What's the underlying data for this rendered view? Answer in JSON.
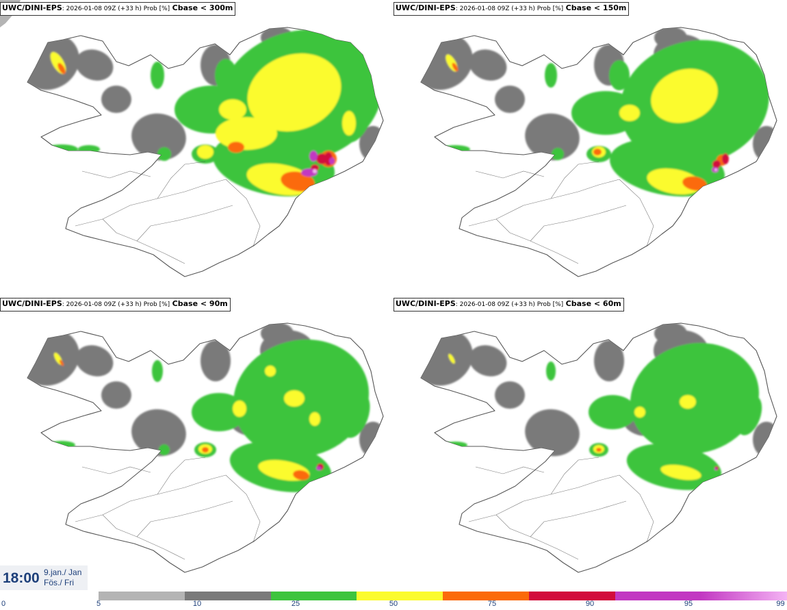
{
  "panels": [
    {
      "model": "UWC/DINI-EPS",
      "meta": ": 2026-01-08 09Z (+33 h) Prob [%]",
      "variable": "Cbase < 300m"
    },
    {
      "model": "UWC/DINI-EPS",
      "meta": ": 2026-01-08 09Z (+33 h) Prob [%]",
      "variable": "Cbase < 150m"
    },
    {
      "model": "UWC/DINI-EPS",
      "meta": ": 2026-01-08 09Z (+33 h) Prob [%]",
      "variable": "Cbase < 90m"
    },
    {
      "model": "UWC/DINI-EPS",
      "meta": ": 2026-01-08 09Z (+33 h) Prob [%]",
      "variable": "Cbase < 60m"
    }
  ],
  "valid_time": {
    "time": "18:00",
    "date": "9.jan./ Jan",
    "day": "Fös./ Fri"
  },
  "colorbar": {
    "ticks": [
      "0",
      "5",
      "10",
      "25",
      "50",
      "75",
      "90",
      "95",
      "99"
    ],
    "colors": [
      "#b4b4b4",
      "#7a7a7a",
      "#3ec43e",
      "#fbfb2e",
      "#fb6a0a",
      "#d20c3c",
      "#c238c2",
      "#f4b4f4"
    ]
  }
}
